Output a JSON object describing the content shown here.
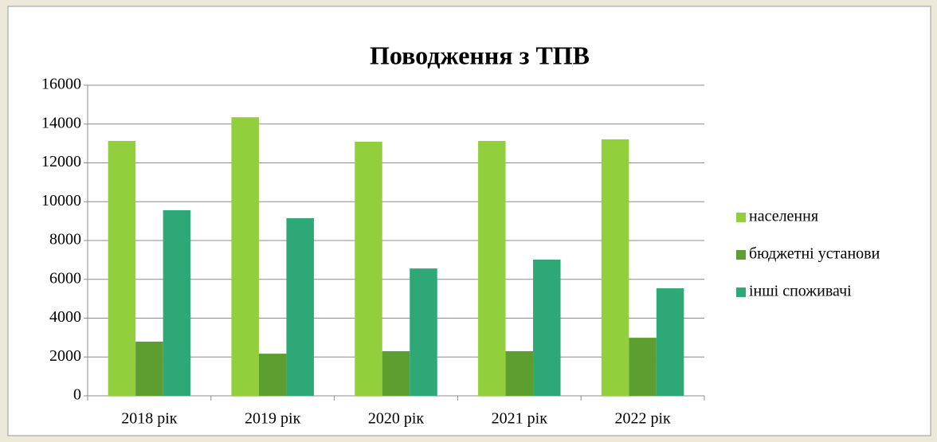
{
  "chart_data": {
    "type": "bar",
    "title": "Поводження з ТПВ",
    "categories": [
      "2018 рік",
      "2019 рік",
      "2020 рік",
      "2021 рік",
      "2022 рік"
    ],
    "series": [
      {
        "name": "населення",
        "color": "#92cf3c",
        "values": [
          13130,
          14350,
          13090,
          13130,
          13210
        ]
      },
      {
        "name": "бюджетні установи",
        "color": "#5c9e30",
        "values": [
          2790,
          2170,
          2300,
          2300,
          2990
        ]
      },
      {
        "name": "інші споживачі",
        "color": "#2fa878",
        "values": [
          9560,
          9150,
          6560,
          7015,
          5540
        ]
      }
    ],
    "ylim": [
      0,
      16000
    ],
    "yticks": [
      0,
      2000,
      4000,
      6000,
      8000,
      10000,
      12000,
      14000,
      16000
    ],
    "grid": true,
    "legend": "right"
  }
}
